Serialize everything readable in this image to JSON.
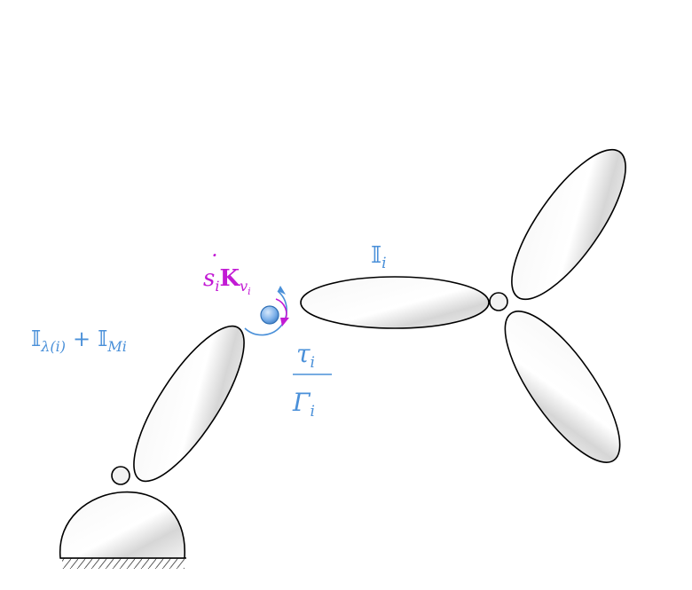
{
  "labels": {
    "link_inertia_bb": "𝕀",
    "link_inertia_sub": "i",
    "parent_bb": "𝕀",
    "parent_sub": "λ(i)",
    "plus": "+",
    "motor_bb": "𝕀",
    "motor_sub": "Mi",
    "friction_s": "s",
    "friction_dot": "˙",
    "friction_sub_i": "i",
    "friction_K": "K",
    "friction_sub_v": "v",
    "friction_sub_vi": "i",
    "torque_tau": "τ",
    "torque_tau_sub": "i",
    "torque_gamma": "Γ",
    "torque_gamma_sub": "i"
  },
  "colors": {
    "blue": "#4a90d9",
    "magenta": "#c21bd4",
    "outline": "#000000",
    "link_fill_light": "#ffffff",
    "link_fill_dark": "#d9d9d9"
  }
}
